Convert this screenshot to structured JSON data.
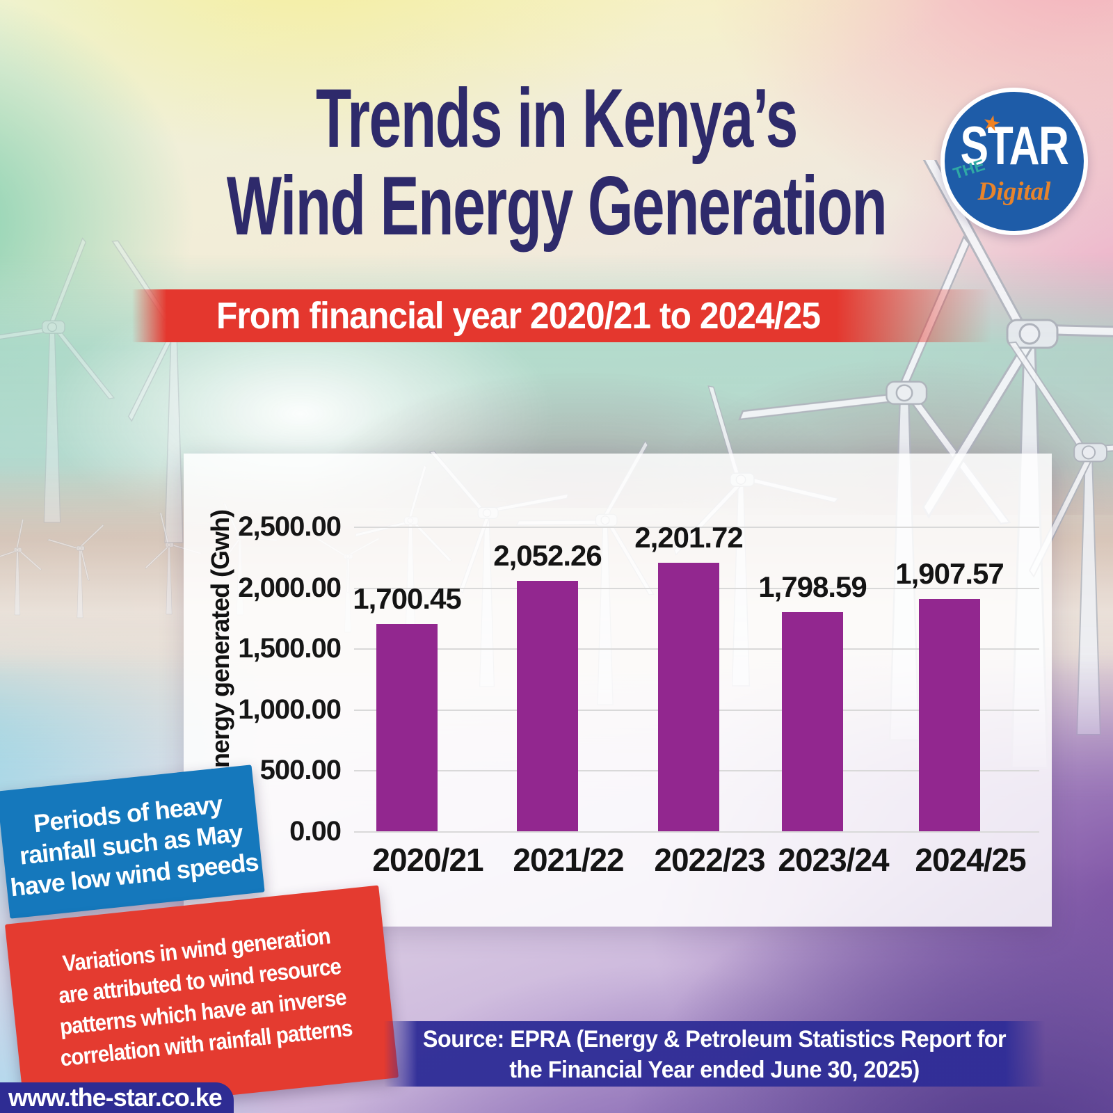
{
  "header": {
    "title_line1": "Trends in Kenya’s",
    "title_line2": "Wind Energy Generation",
    "subtitle": "From financial year 2020/21 to 2024/25"
  },
  "logo": {
    "the": "THE",
    "star": "STAR",
    "digital": "Digital",
    "star_glyph": "★"
  },
  "notes": {
    "blue_box_lines": [
      "Periods of heavy",
      "rainfall such as May",
      "have low wind speeds"
    ],
    "red_box_lines": [
      "Variations in wind generation",
      "are attributed to wind resource",
      "patterns which have an inverse",
      "correlation with rainfall patterns"
    ]
  },
  "source": {
    "line1": "Source: EPRA (Energy & Petroleum Statistics Report for",
    "line2": "the Financial Year ended June 30, 2025)"
  },
  "footer": {
    "website": "www.the-star.co.ke"
  },
  "colors": {
    "title_text": "#2E2A6B",
    "bar": "#92278F",
    "subtitle_banner_red": "#E4372E",
    "note_blue": "#1578BC",
    "note_red": "#E43B30",
    "source_banner_blue": "#302E97",
    "website_banner_blue": "#2E2C93",
    "logo_circle_blue": "#1E5CA8",
    "logo_digital_orange": "#E8842B",
    "logo_the_teal": "#2FA9A5"
  },
  "chart_data": {
    "type": "bar",
    "title": "Trends in Kenya's Wind Energy Generation",
    "categories": [
      "2020/21",
      "2021/22",
      "2022/23",
      "2023/24",
      "2024/25"
    ],
    "values": [
      1700.45,
      2052.26,
      2201.72,
      1798.59,
      1907.57
    ],
    "value_labels": [
      "1,700.45",
      "2,052.26",
      "2,201.72",
      "1,798.59",
      "1,907.57"
    ],
    "xlabel": "",
    "ylabel": "Energy generated (Gwh)",
    "ylim": [
      0,
      2500
    ],
    "ytick_labels": [
      "2,500.00",
      "2,000.00",
      "1,500.00",
      "1,000.00",
      "500.00",
      "0.00"
    ],
    "grid": true,
    "legend": "none",
    "bar_color": "#92278F"
  }
}
